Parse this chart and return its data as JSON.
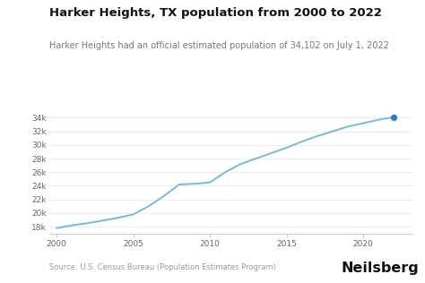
{
  "title": "Harker Heights, TX population from 2000 to 2022",
  "subtitle": "Harker Heights had an official estimated population of 34,102 on July 1, 2022",
  "source": "Source: U.S. Census Bureau (Population Estimates Program)",
  "brand": "Neilsberg",
  "years": [
    2000,
    2001,
    2002,
    2003,
    2004,
    2005,
    2006,
    2007,
    2008,
    2009,
    2010,
    2011,
    2012,
    2013,
    2014,
    2015,
    2016,
    2017,
    2018,
    2019,
    2020,
    2021,
    2022
  ],
  "population": [
    17787,
    18200,
    18500,
    18900,
    19300,
    19800,
    21000,
    22500,
    24200,
    24300,
    24500,
    26000,
    27200,
    28000,
    28800,
    29600,
    30500,
    31300,
    32000,
    32700,
    33200,
    33700,
    34102
  ],
  "line_color": "#7ab8d9",
  "dot_color": "#3a7abf",
  "bg_color": "#ffffff",
  "title_fontsize": 9.5,
  "subtitle_fontsize": 7.0,
  "source_fontsize": 6.0,
  "brand_fontsize": 11.5,
  "ylim": [
    17000,
    35500
  ],
  "yticks": [
    18000,
    20000,
    22000,
    24000,
    26000,
    28000,
    30000,
    32000,
    34000
  ],
  "xticks": [
    2000,
    2005,
    2010,
    2015,
    2020
  ],
  "xlim_left": 1999.5,
  "xlim_right": 2023.2,
  "title_color": "#111111",
  "subtitle_color": "#777777",
  "source_color": "#999999",
  "brand_color": "#111111",
  "tick_color": "#666666",
  "grid_color": "#e8e8e8",
  "spine_color": "#cccccc"
}
